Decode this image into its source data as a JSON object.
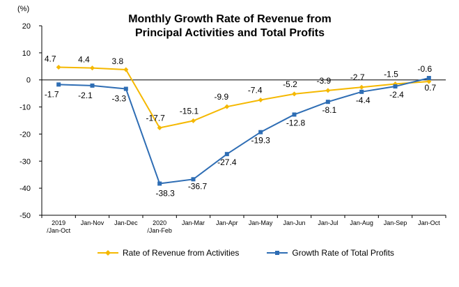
{
  "chart_data": {
    "type": "line",
    "title_line1": "Monthly Growth Rate of Revenue from",
    "title_line2": "Principal Activities  and Total Profits",
    "unit_label": "(%)",
    "categories": [
      "2019\n/Jan-Oct",
      "Jan-Nov",
      "Jan-Dec",
      "2020\n/Jan-Feb",
      "Jan-Mar",
      "Jan-Apr",
      "Jan-May",
      "Jan-Jun",
      "Jan-Jul",
      "Jan-Aug",
      "Jan-Sep",
      "Jan-Oct"
    ],
    "ylim": [
      -50,
      20
    ],
    "yticks": [
      20,
      10,
      0,
      -10,
      -20,
      -30,
      -40,
      -50
    ],
    "series": [
      {
        "name": "Rate of Revenue from Activities",
        "color": "#F5B800",
        "marker": "diamond",
        "values": [
          4.7,
          4.4,
          3.8,
          -17.7,
          -15.1,
          -9.9,
          -7.4,
          -5.2,
          -3.9,
          -2.7,
          -1.5,
          -0.6
        ],
        "labels": [
          "4.7",
          "4.4",
          "3.8",
          "-17.7",
          "-15.1",
          "-9.9",
          "-7.4",
          "-5.2",
          "-3.9",
          "-2.7",
          "-1.5",
          "-0.6"
        ]
      },
      {
        "name": "Growth Rate of Total Profits",
        "color": "#2E6DB4",
        "marker": "square",
        "values": [
          -1.7,
          -2.1,
          -3.3,
          -38.3,
          -36.7,
          -27.4,
          -19.3,
          -12.8,
          -8.1,
          -4.4,
          -2.4,
          0.7
        ],
        "labels": [
          "-1.7",
          "-2.1",
          "-3.3",
          "-38.3",
          "-36.7",
          "-27.4",
          "-19.3",
          "-12.8",
          "-8.1",
          "-4.4",
          "-2.4",
          "0.7"
        ]
      }
    ],
    "legend_position": "bottom"
  }
}
